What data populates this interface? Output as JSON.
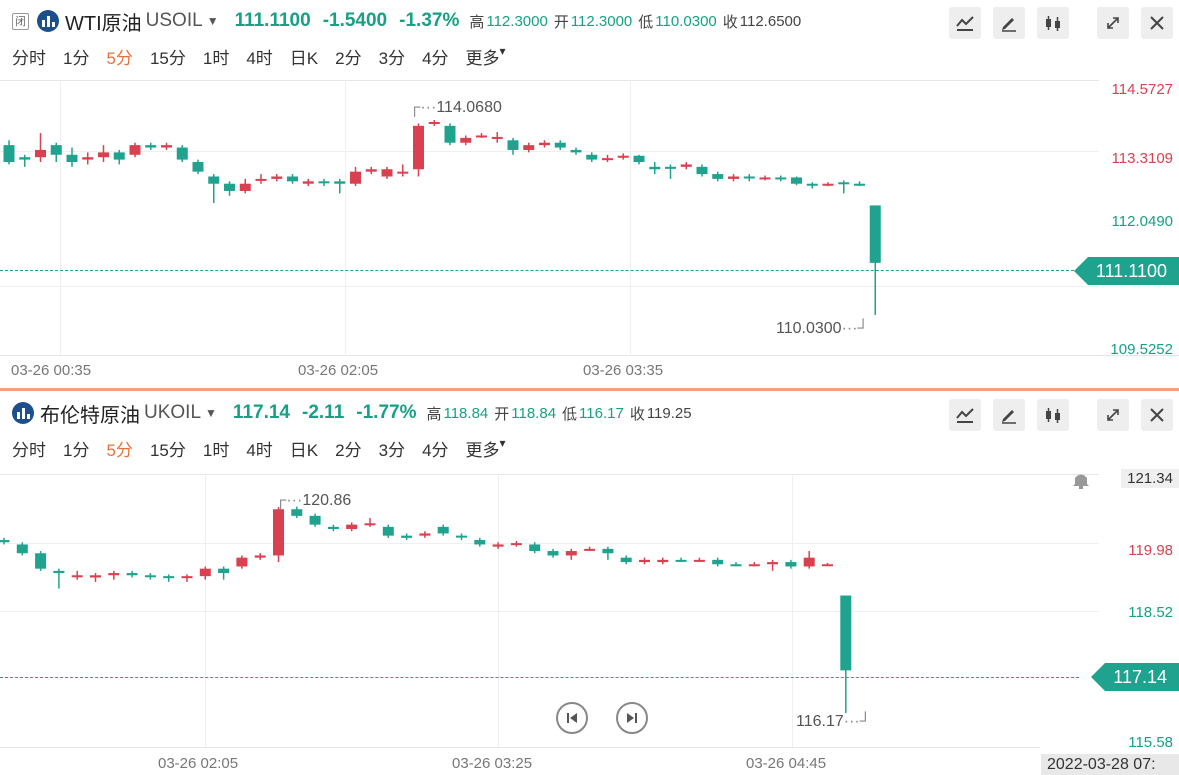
{
  "colors": {
    "up": "#d94050",
    "down": "#1fa38e",
    "active": "#e8703a",
    "last": "#1fa38e"
  },
  "intervals": [
    "分时",
    "1分",
    "5分",
    "15分",
    "1时",
    "4时",
    "日K",
    "2分",
    "3分",
    "4分",
    "更多"
  ],
  "active_interval": "5分",
  "top": {
    "badge": "闭",
    "name": "WTI原油",
    "symbol": "USOIL",
    "price": "111.1100",
    "change": "-1.5400",
    "change_pct": "-1.37%",
    "high_label": "高",
    "high": "112.3000",
    "open_label": "开",
    "open": "112.3000",
    "low_label": "低",
    "low": "110.0300",
    "close_label": "收",
    "close": "112.6500",
    "price_axis": [
      "114.5727",
      "113.3109",
      "112.0490",
      "109.5252"
    ],
    "last_tag": "111.1100",
    "max_mark": "114.0680",
    "min_mark": "110.0300",
    "time_axis": [
      "03-26 00:35",
      "03-26 02:05",
      "03-26 03:35"
    ],
    "chart_data": {
      "type": "candlestick",
      "title": "",
      "ylim": [
        109.2,
        114.9
      ],
      "candles": [
        [
          113.55,
          113.2,
          113.65,
          113.15
        ],
        [
          113.3,
          113.25,
          113.35,
          113.1
        ],
        [
          113.3,
          113.45,
          113.8,
          113.2
        ],
        [
          113.55,
          113.35,
          113.6,
          113.2
        ],
        [
          113.35,
          113.2,
          113.5,
          113.1
        ],
        [
          113.25,
          113.3,
          113.4,
          113.15
        ],
        [
          113.3,
          113.4,
          113.55,
          113.2
        ],
        [
          113.4,
          113.25,
          113.45,
          113.15
        ],
        [
          113.35,
          113.55,
          113.6,
          113.3
        ],
        [
          113.55,
          113.5,
          113.6,
          113.45
        ],
        [
          113.5,
          113.55,
          113.6,
          113.45
        ],
        [
          113.5,
          113.25,
          113.55,
          113.2
        ],
        [
          113.2,
          113.0,
          113.25,
          112.95
        ],
        [
          112.9,
          112.75,
          112.95,
          112.35
        ],
        [
          112.75,
          112.6,
          112.8,
          112.5
        ],
        [
          112.6,
          112.75,
          112.85,
          112.55
        ],
        [
          112.85,
          112.85,
          112.95,
          112.75
        ],
        [
          112.85,
          112.9,
          112.95,
          112.8
        ],
        [
          112.9,
          112.8,
          112.95,
          112.75
        ],
        [
          112.75,
          112.8,
          112.85,
          112.7
        ],
        [
          112.8,
          112.78,
          112.85,
          112.7
        ],
        [
          112.8,
          112.75,
          112.85,
          112.55
        ],
        [
          112.75,
          113.0,
          113.1,
          112.7
        ],
        [
          113.0,
          113.05,
          113.1,
          112.95
        ],
        [
          112.9,
          113.05,
          113.1,
          112.85
        ],
        [
          113.0,
          113.0,
          113.15,
          112.9
        ],
        [
          113.05,
          113.95,
          114.0,
          112.9
        ],
        [
          114.0,
          114.03,
          114.07,
          113.95
        ],
        [
          113.95,
          113.6,
          114.0,
          113.55
        ],
        [
          113.6,
          113.7,
          113.75,
          113.55
        ],
        [
          113.72,
          113.75,
          113.8,
          113.7
        ],
        [
          113.72,
          113.72,
          113.82,
          113.6
        ],
        [
          113.65,
          113.45,
          113.7,
          113.35
        ],
        [
          113.45,
          113.55,
          113.6,
          113.4
        ],
        [
          113.55,
          113.6,
          113.65,
          113.5
        ],
        [
          113.6,
          113.5,
          113.65,
          113.45
        ],
        [
          113.45,
          113.4,
          113.5,
          113.35
        ],
        [
          113.35,
          113.25,
          113.4,
          113.2
        ],
        [
          113.25,
          113.28,
          113.35,
          113.2
        ],
        [
          113.3,
          113.33,
          113.38,
          113.25
        ],
        [
          113.33,
          113.2,
          113.35,
          113.15
        ],
        [
          113.1,
          113.05,
          113.2,
          112.95
        ],
        [
          113.1,
          113.08,
          113.15,
          112.85
        ],
        [
          113.1,
          113.15,
          113.2,
          113.05
        ],
        [
          113.1,
          112.95,
          113.15,
          112.9
        ],
        [
          112.95,
          112.85,
          113.0,
          112.8
        ],
        [
          112.85,
          112.9,
          112.95,
          112.8
        ],
        [
          112.9,
          112.88,
          112.95,
          112.8
        ],
        [
          112.88,
          112.88,
          112.92,
          112.82
        ],
        [
          112.88,
          112.86,
          112.92,
          112.8
        ],
        [
          112.88,
          112.75,
          112.9,
          112.72
        ],
        [
          112.75,
          112.72,
          112.78,
          112.65
        ],
        [
          112.72,
          112.75,
          112.78,
          112.7
        ],
        [
          112.78,
          112.75,
          112.82,
          112.55
        ],
        [
          112.75,
          112.72,
          112.8,
          112.7
        ],
        [
          112.3,
          111.11,
          112.3,
          110.03
        ]
      ]
    }
  },
  "bottom": {
    "name": "布伦特原油",
    "symbol": "UKOIL",
    "price": "117.14",
    "change": "-2.11",
    "change_pct": "-1.77%",
    "high_label": "高",
    "high": "118.84",
    "open_label": "开",
    "open": "118.84",
    "low_label": "低",
    "low": "116.17",
    "close_label": "收",
    "close": "119.25",
    "price_axis": [
      "121.34",
      "119.98",
      "118.52",
      "115.58"
    ],
    "last_tag": "117.14",
    "max_mark": "120.86",
    "min_mark": "116.17",
    "time_axis": [
      "03-26 02:05",
      "03-26 03:25",
      "03-26 04:45"
    ],
    "datetime": "2022-03-28 07:",
    "chart_data": {
      "type": "candlestick",
      "title": "",
      "ylim": [
        115.4,
        121.6
      ],
      "candles": [
        [
          120.1,
          120.05,
          120.15,
          120.0
        ],
        [
          120.0,
          119.8,
          120.05,
          119.75
        ],
        [
          119.8,
          119.45,
          119.85,
          119.4
        ],
        [
          119.4,
          119.35,
          119.45,
          119.0
        ],
        [
          119.3,
          119.3,
          119.4,
          119.2
        ],
        [
          119.25,
          119.3,
          119.35,
          119.15
        ],
        [
          119.3,
          119.35,
          119.4,
          119.2
        ],
        [
          119.35,
          119.3,
          119.4,
          119.25
        ],
        [
          119.3,
          119.28,
          119.35,
          119.2
        ],
        [
          119.28,
          119.27,
          119.32,
          119.15
        ],
        [
          119.27,
          119.28,
          119.32,
          119.15
        ],
        [
          119.28,
          119.45,
          119.5,
          119.2
        ],
        [
          119.45,
          119.35,
          119.5,
          119.2
        ],
        [
          119.5,
          119.7,
          119.75,
          119.45
        ],
        [
          119.7,
          119.75,
          119.8,
          119.65
        ],
        [
          119.75,
          120.8,
          120.85,
          119.6
        ],
        [
          120.8,
          120.65,
          120.86,
          120.6
        ],
        [
          120.65,
          120.45,
          120.7,
          120.4
        ],
        [
          120.4,
          120.35,
          120.45,
          120.3
        ],
        [
          120.35,
          120.45,
          120.5,
          120.3
        ],
        [
          120.45,
          120.48,
          120.6,
          120.4
        ],
        [
          120.4,
          120.2,
          120.45,
          120.15
        ],
        [
          120.2,
          120.15,
          120.25,
          120.1
        ],
        [
          120.2,
          120.25,
          120.3,
          120.15
        ],
        [
          120.4,
          120.25,
          120.45,
          120.2
        ],
        [
          120.2,
          120.18,
          120.25,
          120.1
        ],
        [
          120.1,
          120.0,
          120.15,
          119.95
        ],
        [
          119.95,
          120.0,
          120.05,
          119.9
        ],
        [
          120.0,
          120.03,
          120.08,
          119.95
        ],
        [
          120.0,
          119.85,
          120.05,
          119.8
        ],
        [
          119.85,
          119.75,
          119.9,
          119.7
        ],
        [
          119.75,
          119.85,
          119.9,
          119.65
        ],
        [
          119.88,
          119.9,
          119.95,
          119.85
        ],
        [
          119.9,
          119.8,
          119.95,
          119.65
        ],
        [
          119.7,
          119.6,
          119.75,
          119.55
        ],
        [
          119.6,
          119.65,
          119.7,
          119.55
        ],
        [
          119.6,
          119.65,
          119.7,
          119.55
        ],
        [
          119.65,
          119.63,
          119.7,
          119.6
        ],
        [
          119.63,
          119.65,
          119.7,
          119.6
        ],
        [
          119.65,
          119.55,
          119.7,
          119.5
        ],
        [
          119.55,
          119.53,
          119.6,
          119.5
        ],
        [
          119.53,
          119.55,
          119.6,
          119.5
        ],
        [
          119.55,
          119.6,
          119.65,
          119.4
        ],
        [
          119.6,
          119.5,
          119.65,
          119.45
        ],
        [
          119.5,
          119.7,
          119.85,
          119.45
        ],
        [
          119.55,
          119.55,
          119.58,
          119.52
        ],
        [
          118.84,
          117.14,
          118.84,
          116.17
        ]
      ]
    }
  },
  "tool_icons": [
    "chart-style-icon",
    "pencil-icon",
    "candlestick-icon",
    "expand-icon",
    "close-icon"
  ]
}
